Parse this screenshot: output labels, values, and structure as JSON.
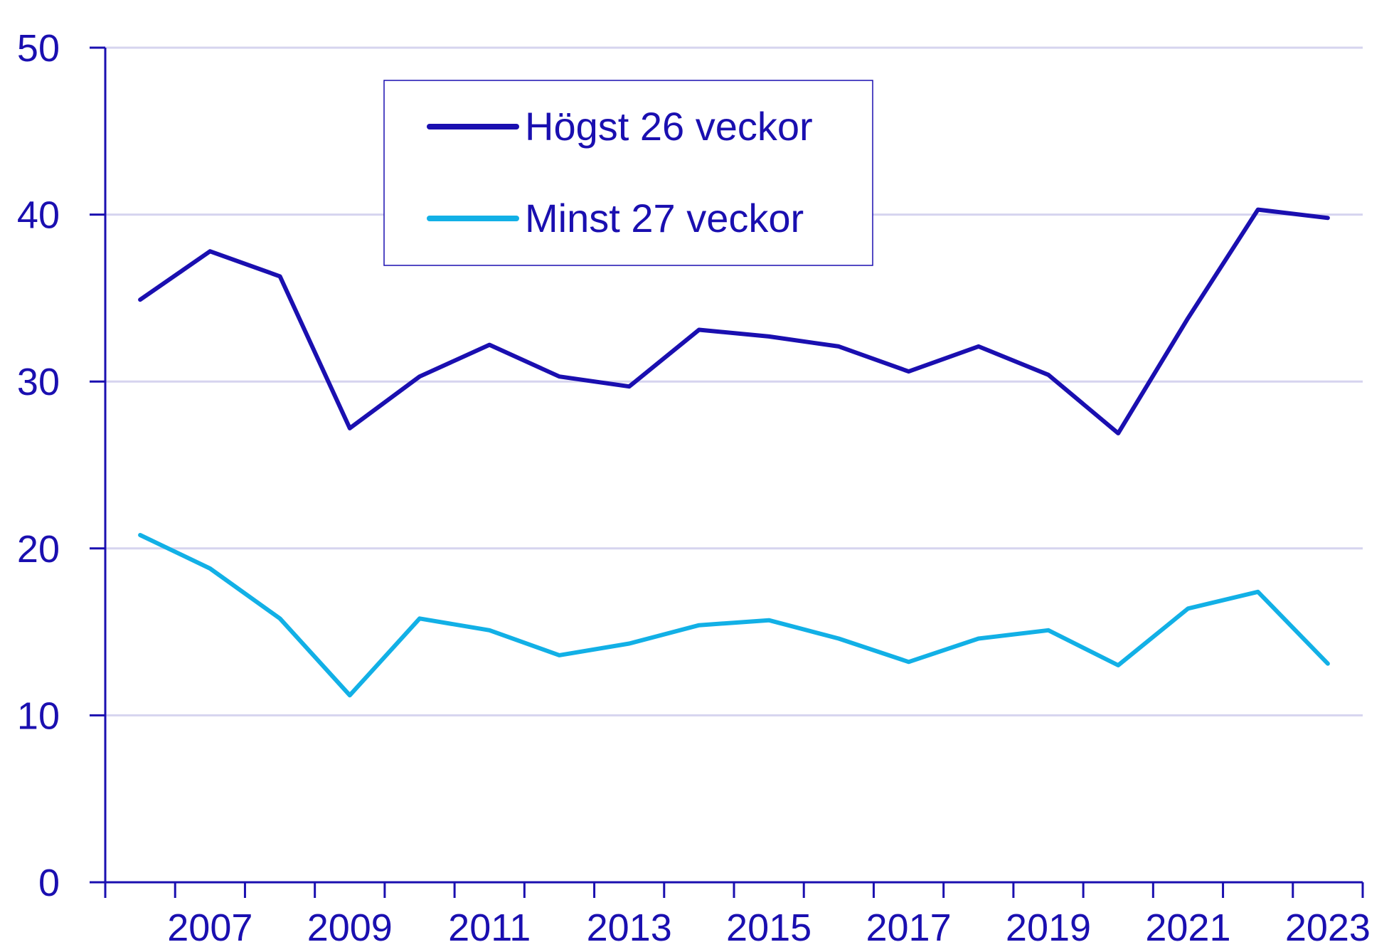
{
  "chart_data": {
    "type": "line",
    "x": [
      2006,
      2007,
      2008,
      2009,
      2010,
      2011,
      2012,
      2013,
      2014,
      2015,
      2016,
      2017,
      2018,
      2019,
      2020,
      2021,
      2022,
      2023
    ],
    "x_tick_labels": [
      "2007",
      "2009",
      "2011",
      "2013",
      "2015",
      "2017",
      "2019",
      "2021",
      "2023"
    ],
    "y_ticks": [
      0,
      10,
      20,
      30,
      40,
      50
    ],
    "ylim": [
      0,
      50
    ],
    "xlim": [
      2005.5,
      2023.5
    ],
    "grid": "horizontal",
    "legend_position": "top-center",
    "series": [
      {
        "name": "Högst 26 veckor",
        "color": "#1a0fb0",
        "values": [
          34.9,
          37.8,
          36.3,
          27.2,
          30.3,
          32.2,
          30.3,
          29.7,
          33.1,
          32.7,
          32.1,
          30.6,
          32.1,
          30.4,
          26.9,
          33.8,
          40.3,
          39.8
        ]
      },
      {
        "name": "Minst 27 veckor",
        "color": "#12b0e6",
        "values": [
          20.8,
          18.8,
          15.8,
          11.2,
          15.8,
          15.1,
          13.6,
          14.3,
          15.4,
          15.7,
          14.6,
          13.2,
          14.6,
          15.1,
          13.0,
          16.4,
          17.4,
          13.1
        ]
      }
    ]
  }
}
